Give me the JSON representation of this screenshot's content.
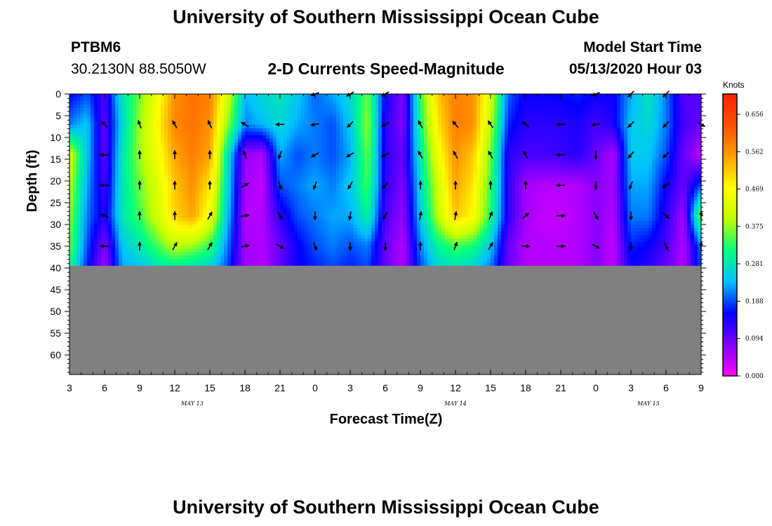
{
  "header": {
    "title": "University of Southern Mississippi Ocean Cube",
    "station_id": "PTBM6",
    "station_location": "30.2130N 88.5050W",
    "chart_title": "2-D Currents Speed-Magnitude",
    "model_label": "Model Start Time",
    "model_time": "05/13/2020 Hour 03"
  },
  "footer": {
    "title": "University of Southern Mississippi Ocean Cube"
  },
  "colors": {
    "no_data": "#808080",
    "colormap": [
      "#ff00ff",
      "#8000ff",
      "#0000ff",
      "#00c0ff",
      "#00ff80",
      "#c0ff00",
      "#ffff00",
      "#ffa000",
      "#ff5000",
      "#ff2000"
    ]
  },
  "chart_data": {
    "type": "heatmap",
    "title": "2-D Currents Speed-Magnitude",
    "xlabel": "Forecast Time(Z)",
    "ylabel": "Depth (ft)",
    "x_range": [
      3,
      57
    ],
    "y_range": [
      0,
      64.5
    ],
    "x_ticks": [
      "3",
      "6",
      "9",
      "12",
      "15",
      "18",
      "21",
      "0",
      "3",
      "6",
      "9",
      "12",
      "15",
      "18",
      "21",
      "0",
      "3",
      "6",
      "9"
    ],
    "y_ticks": [
      "0",
      "5",
      "10",
      "15",
      "20",
      "25",
      "30",
      "35",
      "40",
      "45",
      "50",
      "55",
      "60"
    ],
    "day_labels": [
      {
        "label": "MAY  13",
        "hour": 13.5
      },
      {
        "label": "MAY  14",
        "hour": 36
      },
      {
        "label": "MAY  15",
        "hour": 52.5
      }
    ],
    "data_depth_limit": 39.5,
    "colorbar": {
      "title": "Knots",
      "labels": [
        "0.656",
        "0.562",
        "0.469",
        "0.375",
        "0.281",
        "0.188",
        "0.094",
        "0.000"
      ],
      "range": [
        0,
        0.75
      ]
    },
    "depths": [
      0,
      7,
      14,
      21,
      28,
      35,
      39.5
    ],
    "hours": [
      3,
      4.5,
      6,
      7.5,
      9,
      10.5,
      12,
      13.5,
      15,
      16.5,
      18,
      19.5,
      21,
      22.5,
      24,
      25.5,
      27,
      28.5,
      30,
      31.5,
      33,
      34.5,
      36,
      37.5,
      39,
      40.5,
      42,
      43.5,
      45,
      46.5,
      48,
      49.5,
      51,
      52.5,
      54,
      55.5,
      57
    ],
    "speed_knots": [
      [
        0.16,
        0.2,
        0.12,
        0.3,
        0.38,
        0.48,
        0.6,
        0.63,
        0.62,
        0.45,
        0.25,
        0.28,
        0.3,
        0.26,
        0.21,
        0.24,
        0.28,
        0.38,
        0.16,
        0.08,
        0.35,
        0.55,
        0.62,
        0.6,
        0.45,
        0.21,
        0.16,
        0.16,
        0.17,
        0.18,
        0.16,
        0.16,
        0.24,
        0.3,
        0.22,
        0.11,
        0.12
      ],
      [
        0.22,
        0.26,
        0.1,
        0.28,
        0.4,
        0.5,
        0.61,
        0.63,
        0.6,
        0.4,
        0.22,
        0.25,
        0.28,
        0.24,
        0.22,
        0.2,
        0.26,
        0.4,
        0.14,
        0.08,
        0.33,
        0.52,
        0.62,
        0.6,
        0.42,
        0.18,
        0.14,
        0.14,
        0.14,
        0.15,
        0.12,
        0.15,
        0.26,
        0.28,
        0.22,
        0.12,
        0.1
      ],
      [
        0.45,
        0.26,
        0.1,
        0.3,
        0.4,
        0.48,
        0.58,
        0.62,
        0.58,
        0.3,
        0.07,
        0.05,
        0.24,
        0.2,
        0.22,
        0.2,
        0.24,
        0.38,
        0.14,
        0.1,
        0.3,
        0.48,
        0.6,
        0.55,
        0.38,
        0.14,
        0.12,
        0.12,
        0.13,
        0.14,
        0.1,
        0.05,
        0.26,
        0.26,
        0.2,
        0.1,
        0.04
      ],
      [
        0.42,
        0.24,
        0.12,
        0.3,
        0.38,
        0.45,
        0.55,
        0.6,
        0.52,
        0.28,
        0.06,
        0.04,
        0.2,
        0.22,
        0.24,
        0.22,
        0.26,
        0.36,
        0.14,
        0.08,
        0.28,
        0.44,
        0.58,
        0.52,
        0.36,
        0.14,
        0.06,
        0.05,
        0.05,
        0.05,
        0.08,
        0.06,
        0.24,
        0.24,
        0.16,
        0.1,
        0.2
      ],
      [
        0.4,
        0.22,
        0.14,
        0.3,
        0.36,
        0.44,
        0.54,
        0.58,
        0.48,
        0.26,
        0.05,
        0.05,
        0.14,
        0.2,
        0.22,
        0.24,
        0.24,
        0.32,
        0.12,
        0.07,
        0.26,
        0.42,
        0.55,
        0.5,
        0.34,
        0.14,
        0.06,
        0.04,
        0.04,
        0.05,
        0.08,
        0.05,
        0.22,
        0.22,
        0.14,
        0.06,
        0.4
      ],
      [
        0.38,
        0.2,
        0.08,
        0.26,
        0.3,
        0.36,
        0.42,
        0.4,
        0.35,
        0.22,
        0.06,
        0.05,
        0.1,
        0.16,
        0.2,
        0.22,
        0.2,
        0.22,
        0.1,
        0.05,
        0.22,
        0.32,
        0.36,
        0.34,
        0.26,
        0.1,
        0.05,
        0.05,
        0.05,
        0.05,
        0.08,
        0.04,
        0.18,
        0.16,
        0.12,
        0.05,
        0.22
      ],
      [
        0.34,
        0.18,
        0.06,
        0.24,
        0.26,
        0.3,
        0.32,
        0.3,
        0.28,
        0.2,
        0.06,
        0.05,
        0.1,
        0.16,
        0.18,
        0.2,
        0.18,
        0.2,
        0.1,
        0.05,
        0.2,
        0.28,
        0.3,
        0.28,
        0.22,
        0.1,
        0.05,
        0.05,
        0.05,
        0.05,
        0.08,
        0.04,
        0.16,
        0.14,
        0.1,
        0.05,
        0.2
      ]
    ],
    "vector_hours": [
      3,
      6,
      9,
      12,
      15,
      18,
      21,
      24,
      27,
      30,
      33,
      36,
      39,
      42,
      45,
      48,
      51,
      54,
      57
    ],
    "vector_depths": [
      0,
      7,
      14,
      21,
      28,
      35
    ],
    "vector_direction_deg": [
      [
        null,
        null,
        null,
        null,
        null,
        null,
        null,
        250,
        240,
        240,
        null,
        null,
        null,
        null,
        null,
        250,
        225,
        225,
        null
      ],
      [
        null,
        315,
        340,
        330,
        335,
        300,
        270,
        260,
        225,
        240,
        330,
        320,
        325,
        310,
        270,
        260,
        225,
        225,
        120
      ],
      [
        null,
        270,
        0,
        0,
        0,
        340,
        200,
        240,
        240,
        240,
        330,
        330,
        330,
        330,
        270,
        180,
        220,
        225,
        null
      ],
      [
        null,
        270,
        0,
        0,
        0,
        60,
        160,
        200,
        210,
        225,
        0,
        0,
        0,
        0,
        270,
        180,
        200,
        240,
        null
      ],
      [
        null,
        290,
        0,
        0,
        30,
        80,
        150,
        180,
        190,
        210,
        10,
        10,
        20,
        50,
        90,
        150,
        180,
        130,
        0
      ],
      [
        null,
        270,
        0,
        30,
        30,
        80,
        120,
        160,
        180,
        180,
        0,
        20,
        30,
        90,
        90,
        120,
        180,
        150,
        0
      ]
    ]
  }
}
